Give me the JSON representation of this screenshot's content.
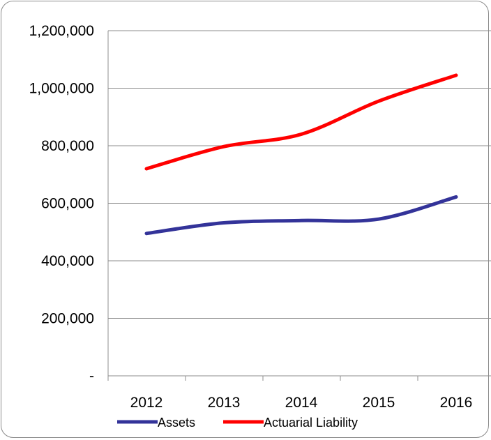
{
  "chart_data": {
    "type": "line",
    "title": "",
    "xlabel": "",
    "ylabel": "",
    "categories": [
      "2012",
      "2013",
      "2014",
      "2015",
      "2016"
    ],
    "ylim": [
      0,
      1200000
    ],
    "yticks": [
      0,
      200000,
      400000,
      600000,
      800000,
      1000000,
      1200000
    ],
    "ytick_labels": [
      "-",
      "200,000",
      "400,000",
      "600,000",
      "800,000",
      "1,000,000",
      "1,200,000"
    ],
    "grid": true,
    "legend_position": "bottom",
    "smooth": true,
    "series": [
      {
        "name": "Assets",
        "color": "#333399",
        "values": [
          495000,
          532000,
          540000,
          545000,
          622000
        ]
      },
      {
        "name": "Actuarial Liability",
        "color": "#ff0000",
        "values": [
          720000,
          797000,
          840000,
          955000,
          1045000
        ]
      }
    ]
  }
}
